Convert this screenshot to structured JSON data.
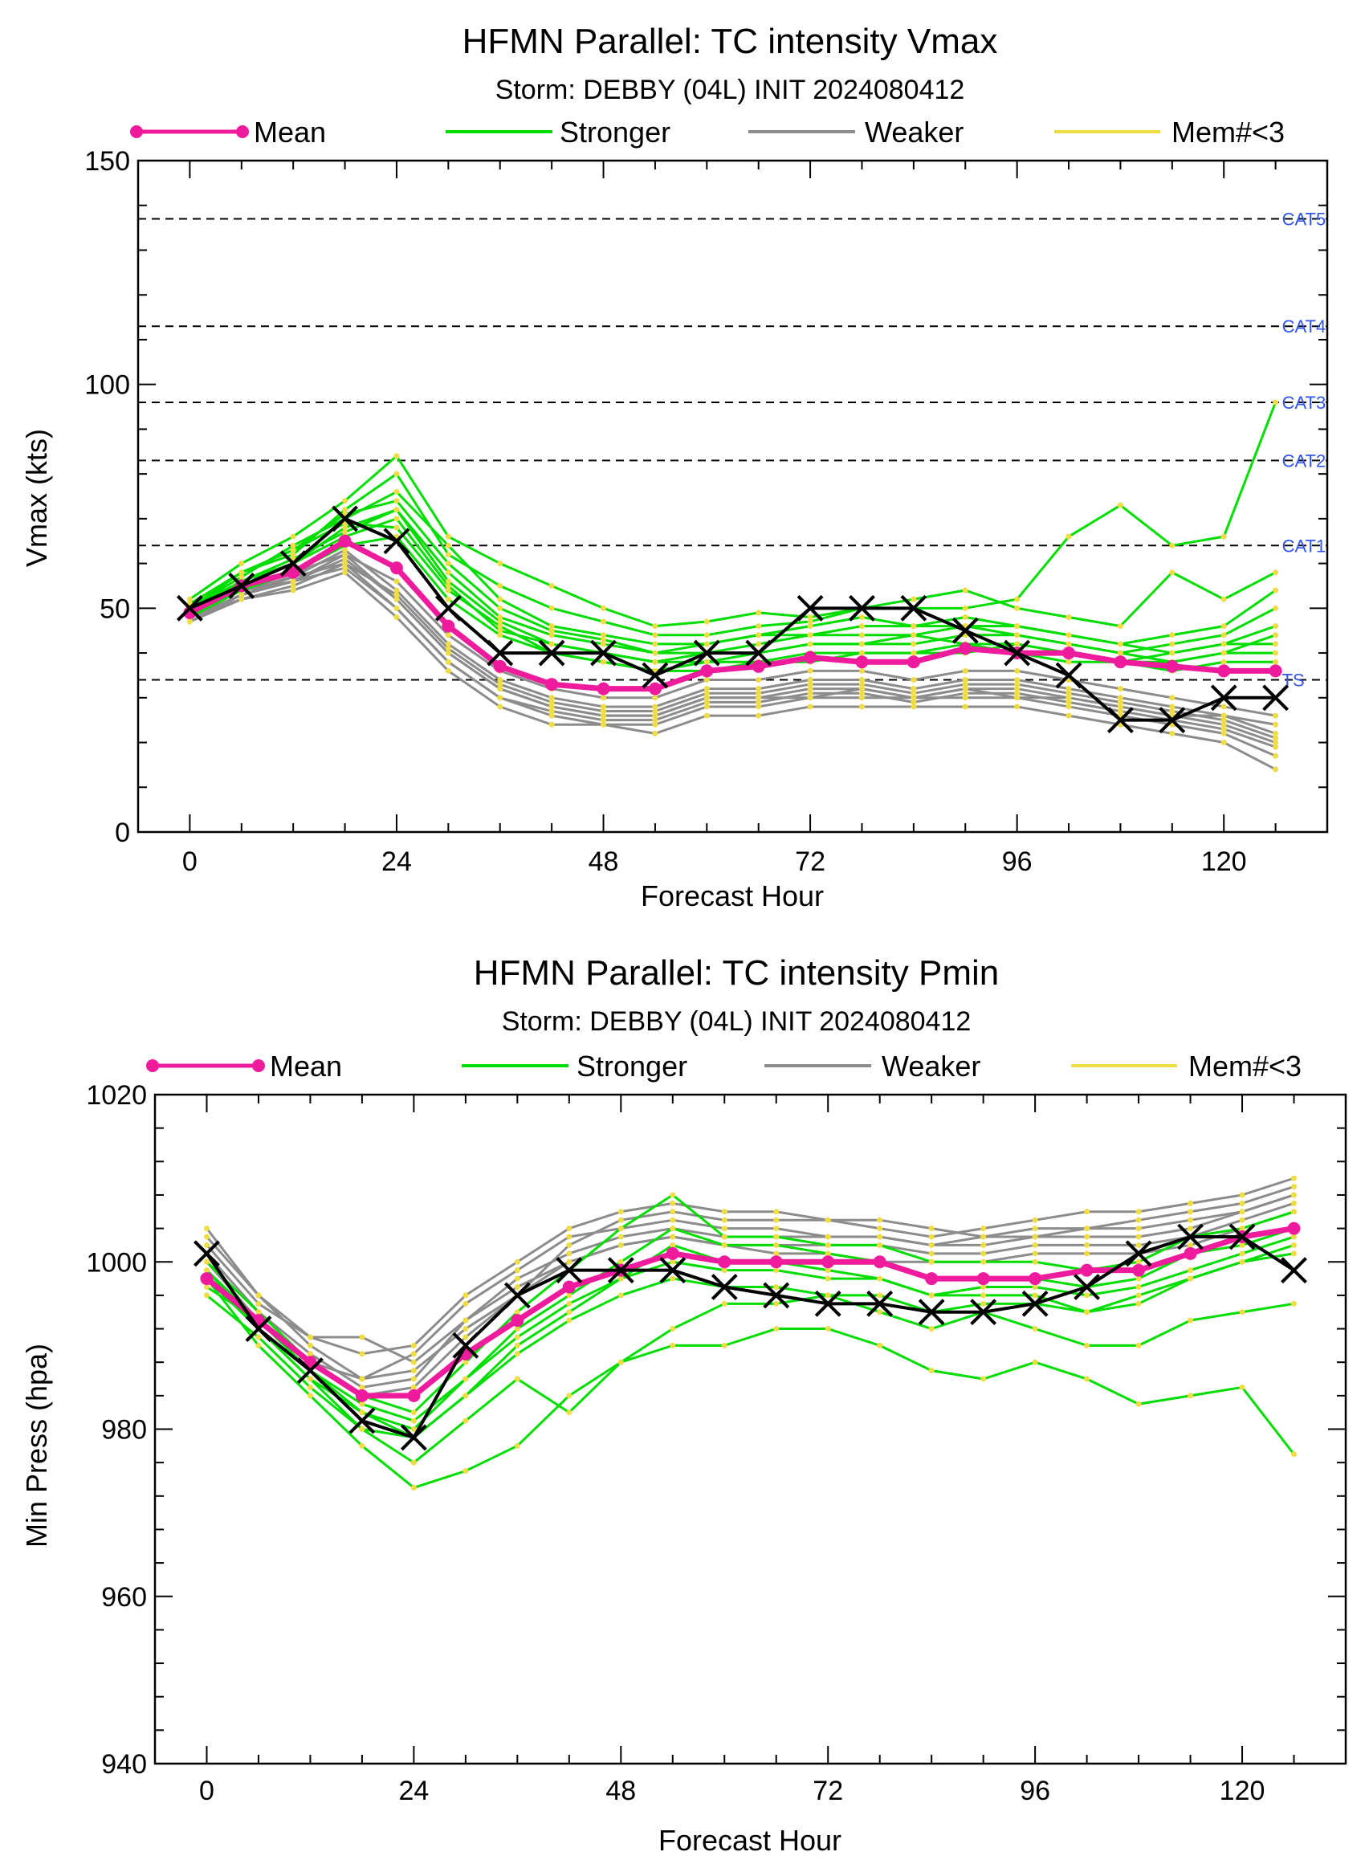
{
  "chart_data": [
    {
      "type": "line",
      "title": "HFMN Parallel: TC intensity Vmax",
      "subtitle": "Storm: DEBBY (04L) INIT 2024080412",
      "xlabel": "Forecast Hour",
      "ylabel": "Vmax (kts)",
      "xlim": [
        -6,
        132
      ],
      "ylim": [
        0,
        150
      ],
      "xticks": [
        0,
        24,
        48,
        72,
        96,
        120
      ],
      "yticks": [
        0,
        50,
        100,
        150
      ],
      "legend": {
        "placement": "top",
        "entries": [
          "Mean",
          "Stronger",
          "Weaker",
          "Mem#<3"
        ]
      },
      "colors": {
        "mean": "#ee1c9c",
        "stronger": "#00dd00",
        "weaker": "#8c8c8c",
        "mem": "#eedd44",
        "observed": "#000000",
        "category_label": "#3355ee"
      },
      "thresholds": [
        {
          "label": "CAT5",
          "value": 137
        },
        {
          "label": "CAT4",
          "value": 113
        },
        {
          "label": "CAT3",
          "value": 96
        },
        {
          "label": "CAT2",
          "value": 83
        },
        {
          "label": "CAT1",
          "value": 64
        },
        {
          "label": "TS",
          "value": 34
        }
      ],
      "x": [
        0,
        6,
        12,
        18,
        24,
        30,
        36,
        42,
        48,
        54,
        60,
        66,
        72,
        78,
        84,
        90,
        96,
        102,
        108,
        114,
        120,
        126
      ],
      "mean": [
        49,
        55,
        58,
        65,
        59,
        46,
        37,
        33,
        32,
        32,
        36,
        37,
        39,
        38,
        38,
        41,
        40,
        40,
        38,
        37,
        36,
        36
      ],
      "observed": [
        50,
        55,
        60,
        70,
        65,
        50,
        40,
        40,
        40,
        35,
        40,
        40,
        50,
        50,
        50,
        45,
        40,
        35,
        25,
        25,
        30,
        30
      ],
      "stronger": [
        [
          50,
          58,
          62,
          72,
          80,
          62,
          55,
          50,
          47,
          44,
          44,
          46,
          47,
          50,
          50,
          50,
          52,
          66,
          73,
          64,
          66,
          96
        ],
        [
          52,
          60,
          66,
          74,
          84,
          66,
          60,
          55,
          50,
          46,
          47,
          49,
          48,
          50,
          52,
          54,
          50,
          48,
          46,
          58,
          52,
          58
        ],
        [
          50,
          57,
          64,
          70,
          76,
          64,
          52,
          46,
          44,
          42,
          42,
          44,
          46,
          48,
          46,
          48,
          46,
          44,
          42,
          44,
          46,
          54
        ],
        [
          48,
          56,
          60,
          68,
          72,
          58,
          48,
          44,
          42,
          40,
          40,
          42,
          44,
          46,
          46,
          46,
          44,
          42,
          40,
          42,
          44,
          50
        ],
        [
          51,
          58,
          63,
          71,
          74,
          60,
          50,
          45,
          43,
          40,
          42,
          44,
          44,
          44,
          44,
          46,
          46,
          44,
          42,
          40,
          42,
          46
        ],
        [
          49,
          55,
          60,
          66,
          70,
          55,
          45,
          42,
          40,
          38,
          40,
          40,
          42,
          42,
          42,
          44,
          44,
          42,
          40,
          38,
          40,
          44
        ],
        [
          50,
          56,
          61,
          67,
          72,
          56,
          47,
          42,
          40,
          38,
          38,
          40,
          42,
          42,
          44,
          42,
          42,
          40,
          38,
          40,
          42,
          42
        ],
        [
          48,
          54,
          58,
          64,
          66,
          52,
          44,
          40,
          38,
          36,
          38,
          38,
          40,
          40,
          40,
          42,
          40,
          38,
          38,
          38,
          40,
          40
        ],
        [
          50,
          58,
          63,
          69,
          68,
          54,
          46,
          40,
          38,
          36,
          36,
          38,
          38,
          40,
          40,
          40,
          42,
          40,
          38,
          36,
          38,
          38
        ]
      ],
      "weaker": [
        [
          48,
          53,
          56,
          62,
          52,
          40,
          32,
          28,
          26,
          26,
          30,
          30,
          32,
          32,
          30,
          32,
          32,
          30,
          28,
          26,
          24,
          20
        ],
        [
          47,
          52,
          55,
          60,
          50,
          38,
          30,
          26,
          24,
          24,
          28,
          28,
          30,
          30,
          30,
          30,
          30,
          28,
          26,
          24,
          22,
          17
        ],
        [
          49,
          54,
          57,
          63,
          54,
          42,
          34,
          30,
          28,
          28,
          32,
          32,
          34,
          34,
          32,
          34,
          34,
          32,
          30,
          28,
          26,
          24
        ],
        [
          48,
          52,
          54,
          58,
          48,
          36,
          28,
          24,
          24,
          22,
          26,
          26,
          28,
          28,
          28,
          28,
          28,
          26,
          24,
          22,
          20,
          14
        ],
        [
          50,
          55,
          58,
          62,
          56,
          44,
          36,
          32,
          30,
          30,
          34,
          34,
          36,
          36,
          34,
          36,
          36,
          34,
          32,
          30,
          28,
          26
        ],
        [
          47,
          53,
          56,
          61,
          52,
          40,
          32,
          28,
          26,
          26,
          30,
          30,
          30,
          32,
          30,
          32,
          30,
          30,
          28,
          26,
          26,
          22
        ],
        [
          49,
          54,
          56,
          59,
          50,
          38,
          30,
          27,
          25,
          25,
          29,
          29,
          31,
          31,
          29,
          31,
          31,
          29,
          27,
          25,
          23,
          19
        ],
        [
          48,
          53,
          57,
          60,
          53,
          41,
          33,
          29,
          27,
          27,
          31,
          31,
          33,
          33,
          31,
          33,
          33,
          31,
          29,
          27,
          25,
          21
        ]
      ]
    },
    {
      "type": "line",
      "title": "HFMN Parallel: TC intensity Pmin",
      "subtitle": "Storm: DEBBY (04L) INIT 2024080412",
      "xlabel": "Forecast Hour",
      "ylabel": "Min Press (hpa)",
      "xlim": [
        -6,
        132
      ],
      "ylim": [
        940,
        1020
      ],
      "xticks": [
        0,
        24,
        48,
        72,
        96,
        120
      ],
      "yticks": [
        940,
        960,
        980,
        1000,
        1020
      ],
      "legend": {
        "placement": "top",
        "entries": [
          "Mean",
          "Stronger",
          "Weaker",
          "Mem#<3"
        ]
      },
      "colors": {
        "mean": "#ee1c9c",
        "stronger": "#00dd00",
        "weaker": "#8c8c8c",
        "mem": "#eedd44",
        "observed": "#000000"
      },
      "x": [
        0,
        6,
        12,
        18,
        24,
        30,
        36,
        42,
        48,
        54,
        60,
        66,
        72,
        78,
        84,
        90,
        96,
        102,
        108,
        114,
        120,
        126
      ],
      "mean": [
        998,
        993,
        988,
        984,
        984,
        989,
        993,
        997,
        999,
        1001,
        1000,
        1000,
        1000,
        1000,
        998,
        998,
        998,
        999,
        999,
        1001,
        1003,
        1004
      ],
      "observed": [
        1001,
        992,
        987,
        981,
        979,
        990,
        996,
        999,
        999,
        999,
        997,
        996,
        995,
        995,
        994,
        994,
        995,
        997,
        1001,
        1003,
        1003,
        999
      ],
      "stronger": [
        [
          998,
          990,
          984,
          978,
          973,
          975,
          978,
          984,
          988,
          990,
          990,
          992,
          992,
          990,
          987,
          986,
          988,
          986,
          983,
          984,
          985,
          977
        ],
        [
          996,
          991,
          985,
          980,
          976,
          981,
          986,
          982,
          988,
          992,
          995,
          995,
          996,
          994,
          992,
          994,
          992,
          990,
          990,
          993,
          994,
          995
        ],
        [
          999,
          992,
          986,
          982,
          979,
          984,
          990,
          994,
          998,
          1002,
          1000,
          1000,
          999,
          998,
          996,
          996,
          996,
          994,
          995,
          998,
          1000,
          1002
        ],
        [
          997,
          993,
          987,
          983,
          981,
          986,
          992,
          996,
          1000,
          1004,
          1002,
          1002,
          1001,
          1000,
          998,
          998,
          998,
          997,
          998,
          1001,
          1002,
          1004
        ],
        [
          1000,
          994,
          988,
          984,
          982,
          988,
          994,
          999,
          1004,
          1008,
          1003,
          1003,
          1002,
          1002,
          1000,
          1000,
          1000,
          999,
          1000,
          1003,
          1004,
          1006
        ],
        [
          998,
          992,
          986,
          980,
          979,
          984,
          989,
          993,
          996,
          998,
          997,
          997,
          996,
          996,
          994,
          995,
          995,
          994,
          996,
          998,
          1000,
          1001
        ],
        [
          999,
          993,
          987,
          982,
          980,
          986,
          991,
          995,
          998,
          1000,
          999,
          999,
          998,
          998,
          996,
          997,
          997,
          996,
          997,
          999,
          1001,
          1003
        ]
      ],
      "weaker": [
        [
          1004,
          996,
          990,
          986,
          987,
          992,
          996,
          1002,
          1005,
          1006,
          1005,
          1005,
          1005,
          1004,
          1003,
          1004,
          1005,
          1006,
          1006,
          1007,
          1008,
          1010
        ],
        [
          1002,
          995,
          991,
          989,
          990,
          996,
          1000,
          1004,
          1006,
          1007,
          1006,
          1006,
          1005,
          1005,
          1004,
          1003,
          1004,
          1004,
          1005,
          1006,
          1007,
          1009
        ],
        [
          1001,
          994,
          989,
          985,
          986,
          993,
          998,
          1001,
          1003,
          1004,
          1003,
          1003,
          1003,
          1003,
          1002,
          1002,
          1003,
          1003,
          1003,
          1004,
          1006,
          1008
        ],
        [
          1000,
          993,
          988,
          984,
          985,
          991,
          996,
          1000,
          1002,
          1003,
          1002,
          1002,
          1002,
          1002,
          1001,
          1001,
          1002,
          1002,
          1002,
          1003,
          1005,
          1007
        ],
        [
          1003,
          996,
          991,
          991,
          988,
          993,
          997,
          1000,
          1002,
          1003,
          1002,
          1001,
          1001,
          1000,
          1000,
          1000,
          1001,
          1001,
          1001,
          1002,
          1004,
          1006
        ],
        [
          999,
          993,
          988,
          986,
          989,
          995,
          999,
          1003,
          1004,
          1005,
          1004,
          1004,
          1003,
          1003,
          1002,
          1003,
          1003,
          1004,
          1004,
          1005,
          1006,
          1008
        ]
      ]
    }
  ]
}
